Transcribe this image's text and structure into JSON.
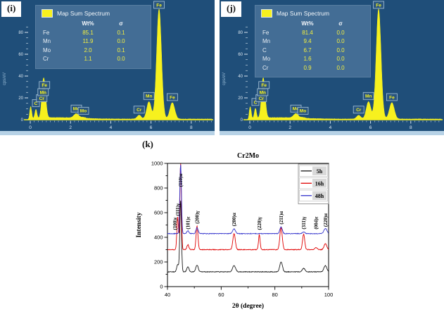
{
  "colors": {
    "eds_background": "#1f4e79",
    "eds_spectrum": "#f7f11e",
    "eds_tick_text": "#dce7f0",
    "eds_axis_label": "#93b6d2",
    "eds_label_box_fill": "#2b5680",
    "eds_label_box_border": "#aac6da",
    "series_5h": "#1a1a1a",
    "series_16h": "#e00000",
    "series_48h": "#3333cc"
  },
  "chart_data": [
    {
      "id": "eds-i",
      "type": "area",
      "panel_tag": "(i)",
      "legend_title": "Map Sum Spectrum",
      "ylabel": "cps/eV",
      "xlim": [
        -0.3,
        9.2
      ],
      "ylim": [
        0,
        110
      ],
      "x_ticks": [
        0,
        2,
        4,
        6,
        8
      ],
      "y_ticks": [
        0,
        20,
        40,
        60,
        80
      ],
      "composition": {
        "headers": [
          "",
          "Wt%",
          "σ"
        ],
        "rows": [
          [
            "Fe",
            "85.1",
            "0.1"
          ],
          [
            "Mn",
            "11.9",
            "0.0"
          ],
          [
            "Mo",
            "2.0",
            "0.1"
          ],
          [
            "Cr",
            "1.1",
            "0.0"
          ]
        ]
      },
      "peaks": [
        {
          "kev": 0.02,
          "h": 12,
          "w": 0.045
        },
        {
          "kev": 0.28,
          "h": 8,
          "w": 0.05,
          "label": "C",
          "label_bottom": 12
        },
        {
          "kev": 0.57,
          "h": 7,
          "w": 0.06,
          "label": "Cr",
          "label_bottom": 16.5
        },
        {
          "kev": 0.64,
          "h": 13,
          "w": 0.06,
          "label": "Mn",
          "label_bottom": 22
        },
        {
          "kev": 0.705,
          "h": 26,
          "w": 0.08,
          "label": "Fe",
          "label_bottom": 28.5
        },
        {
          "kev": 2.29,
          "h": 4,
          "w": 0.12,
          "label": "Mo",
          "label_bottom": 7
        },
        {
          "kev": 2.64,
          "h": 0.8,
          "w": 0.1,
          "label": "Mo",
          "label_bottom": 5
        },
        {
          "kev": 5.41,
          "h": 3.5,
          "w": 0.1,
          "label": "Cr",
          "label_bottom": 6
        },
        {
          "kev": 5.9,
          "h": 16,
          "w": 0.11,
          "label": "Mn",
          "label_bottom": 18.5
        },
        {
          "kev": 6.4,
          "h": 101,
          "w": 0.12,
          "label": "Fe",
          "label_bottom": 102
        },
        {
          "kev": 7.06,
          "h": 15,
          "w": 0.12,
          "label": "Fe",
          "label_bottom": 17.5
        }
      ]
    },
    {
      "id": "eds-j",
      "type": "area",
      "panel_tag": "(j)",
      "legend_title": "Map Sum Spectrum",
      "ylabel": "cps/eV",
      "xlim": [
        -0.3,
        9.6
      ],
      "ylim": [
        0,
        110
      ],
      "x_ticks": [
        0,
        2,
        4,
        6,
        8
      ],
      "y_ticks": [
        0,
        20,
        40,
        60,
        80
      ],
      "composition": {
        "headers": [
          "",
          "Wt%",
          "σ"
        ],
        "rows": [
          [
            "Fe",
            "81.4",
            "0.0"
          ],
          [
            "Mn",
            "9.4",
            "0.0"
          ],
          [
            "C",
            "6.7",
            "0.0"
          ],
          [
            "Mo",
            "1.6",
            "0.0"
          ],
          [
            "Cr",
            "0.9",
            "0.0"
          ]
        ]
      },
      "peaks": [
        {
          "kev": 0.02,
          "h": 12,
          "w": 0.045
        },
        {
          "kev": 0.28,
          "h": 9,
          "w": 0.05,
          "label": "C",
          "label_bottom": 13
        },
        {
          "kev": 0.57,
          "h": 7,
          "w": 0.06,
          "label": "Cr",
          "label_bottom": 16.5
        },
        {
          "kev": 0.64,
          "h": 13,
          "w": 0.06,
          "label": "Mn",
          "label_bottom": 22
        },
        {
          "kev": 0.705,
          "h": 26,
          "w": 0.08,
          "label": "Fe",
          "label_bottom": 28.5
        },
        {
          "kev": 2.29,
          "h": 4,
          "w": 0.12,
          "label": "Mo",
          "label_bottom": 7
        },
        {
          "kev": 2.64,
          "h": 0.8,
          "w": 0.1,
          "label": "Mo",
          "label_bottom": 5
        },
        {
          "kev": 5.41,
          "h": 3.5,
          "w": 0.1,
          "label": "Cr",
          "label_bottom": 6
        },
        {
          "kev": 5.9,
          "h": 16,
          "w": 0.11,
          "label": "Mn",
          "label_bottom": 18.5
        },
        {
          "kev": 6.4,
          "h": 101,
          "w": 0.12,
          "label": "Fe",
          "label_bottom": 102
        },
        {
          "kev": 7.06,
          "h": 15,
          "w": 0.12,
          "label": "Fe",
          "label_bottom": 17.5
        }
      ]
    },
    {
      "id": "xrd",
      "type": "line",
      "panel_tag": "(k)",
      "title": "Cr2Mo",
      "xlabel": "2θ (degree)",
      "ylabel": "Intensity",
      "xlim": [
        40,
        100
      ],
      "ylim": [
        0,
        1000
      ],
      "x_ticks": [
        40,
        60,
        80,
        100
      ],
      "y_ticks": [
        0,
        200,
        400,
        600,
        800,
        1000
      ],
      "legend_position": "top-right",
      "peak_labels": [
        {
          "two_theta": 42.8,
          "label": "(100)ε",
          "bottom_y": 460
        },
        {
          "two_theta": 43.8,
          "label": "(111)γ",
          "bottom_y": 575
        },
        {
          "two_theta": 44.9,
          "label": "(110)α",
          "bottom_y": 810
        },
        {
          "two_theta": 47.6,
          "label": "(101)ε",
          "bottom_y": 465
        },
        {
          "two_theta": 51.0,
          "label": "(200)γ",
          "bottom_y": 510
        },
        {
          "two_theta": 64.8,
          "label": "(200)α",
          "bottom_y": 490
        },
        {
          "two_theta": 74.2,
          "label": "(220)γ",
          "bottom_y": 460
        },
        {
          "two_theta": 82.3,
          "label": "(211)α",
          "bottom_y": 505
        },
        {
          "two_theta": 90.7,
          "label": "(311)γ",
          "bottom_y": 465
        },
        {
          "two_theta": 95.3,
          "label": "(004)ε",
          "bottom_y": 465
        },
        {
          "two_theta": 98.8,
          "label": "(220)α",
          "bottom_y": 485
        }
      ],
      "series": [
        {
          "name": "5h",
          "color": "#1a1a1a",
          "baseline": 120,
          "peaks": [
            [
              43.8,
              60,
              0.35
            ],
            [
              44.9,
              580,
              0.3
            ],
            [
              47.6,
              40,
              0.4
            ],
            [
              51.0,
              55,
              0.45
            ],
            [
              64.8,
              50,
              0.55
            ],
            [
              82.3,
              80,
              0.5
            ],
            [
              90.7,
              28,
              0.5
            ],
            [
              98.8,
              50,
              0.55
            ]
          ]
        },
        {
          "name": "16h",
          "color": "#e00000",
          "baseline": 300,
          "peaks": [
            [
              43.8,
              265,
              0.3
            ],
            [
              44.9,
              700,
              0.28
            ],
            [
              47.6,
              40,
              0.35
            ],
            [
              51.0,
              190,
              0.35
            ],
            [
              64.8,
              130,
              0.45
            ],
            [
              74.2,
              120,
              0.3
            ],
            [
              82.3,
              180,
              0.45
            ],
            [
              90.7,
              125,
              0.4
            ],
            [
              95.3,
              18,
              0.4
            ],
            [
              98.8,
              48,
              0.5
            ]
          ]
        },
        {
          "name": "48h",
          "color": "#3333cc",
          "baseline": 430,
          "peaks": [
            [
              44.9,
              560,
              0.3
            ],
            [
              47.6,
              22,
              0.4
            ],
            [
              51.0,
              48,
              0.4
            ],
            [
              64.8,
              38,
              0.5
            ],
            [
              82.3,
              55,
              0.45
            ],
            [
              90.7,
              14,
              0.45
            ],
            [
              98.8,
              42,
              0.55
            ]
          ]
        }
      ]
    }
  ]
}
